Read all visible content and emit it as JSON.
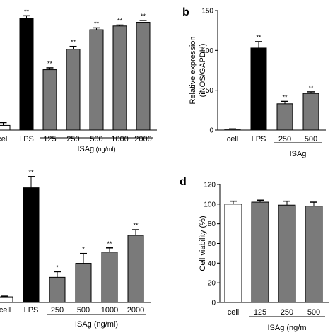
{
  "chart_data": [
    {
      "panel": "",
      "type": "bar",
      "categories": [
        "cell",
        "LPS",
        "125",
        "250",
        "500",
        "1000",
        "2000"
      ],
      "values": [
        5,
        120,
        65,
        87,
        108,
        112,
        116
      ],
      "errors": [
        3,
        3,
        2,
        3,
        2,
        1,
        2
      ],
      "significance": [
        "",
        "**",
        "**",
        "**",
        "**",
        "**",
        "**"
      ],
      "bar_colors": [
        "#ffffff",
        "#000000",
        "#7a7a7a",
        "#7a7a7a",
        "#7a7a7a",
        "#7a7a7a",
        "#7a7a7a"
      ],
      "group_label": "ISAg",
      "group_unit": "(ng/ml)",
      "ylabel": "",
      "ylim": [
        0,
        140
      ]
    },
    {
      "panel": "b",
      "type": "bar",
      "categories": [
        "cell",
        "LPS",
        "250",
        "500"
      ],
      "values": [
        1,
        103,
        33,
        46
      ],
      "errors": [
        0.5,
        8,
        3,
        2
      ],
      "significance": [
        "",
        "**",
        "**",
        "**"
      ],
      "bar_colors": [
        "#ffffff",
        "#000000",
        "#7a7a7a",
        "#7a7a7a"
      ],
      "group_label": "ISAg",
      "ylabel": "Relative expression",
      "ylabel2": "(iNOS/GAPDH)",
      "yticks": [
        0,
        50,
        100,
        150
      ],
      "ylim": [
        0,
        150
      ]
    },
    {
      "panel": "",
      "type": "bar",
      "categories": [
        "cell",
        "LPS",
        "250",
        "500",
        "1000",
        "2000"
      ],
      "values": [
        4,
        82,
        18,
        28,
        36,
        48
      ],
      "errors": [
        0.5,
        8,
        4,
        7,
        3,
        4
      ],
      "significance": [
        "",
        "**",
        "*",
        "*",
        "**",
        "**"
      ],
      "bar_colors": [
        "#ffffff",
        "#000000",
        "#7a7a7a",
        "#7a7a7a",
        "#7a7a7a",
        "#7a7a7a"
      ],
      "group_label": "ISAg (ng/ml)",
      "ylabel": "",
      "ylim": [
        0,
        100
      ]
    },
    {
      "panel": "d",
      "type": "bar",
      "categories": [
        "cell",
        "125",
        "250",
        "500"
      ],
      "values": [
        100,
        102,
        99,
        98
      ],
      "errors": [
        3,
        2,
        4,
        4
      ],
      "significance": [
        "",
        "",
        "",
        ""
      ],
      "bar_colors": [
        "#ffffff",
        "#7a7a7a",
        "#7a7a7a",
        "#7a7a7a"
      ],
      "group_label": "ISAg (ng/m",
      "ylabel": "Cell viability (%)",
      "yticks": [
        0,
        20,
        40,
        60,
        80,
        100,
        120
      ],
      "ylim": [
        0,
        120
      ]
    }
  ]
}
